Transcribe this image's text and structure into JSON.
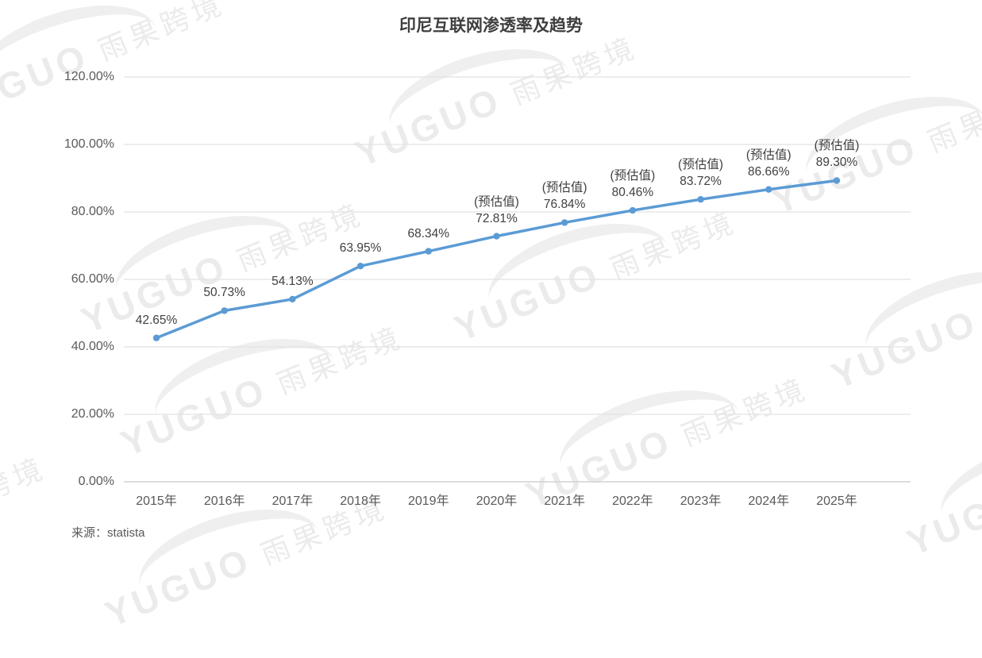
{
  "chart_data": {
    "type": "line",
    "title": "印尼互联网渗透率及趋势",
    "source": "来源：statista",
    "categories": [
      "2015年",
      "2016年",
      "2017年",
      "2018年",
      "2019年",
      "2020年",
      "2021年",
      "2022年",
      "2023年",
      "2024年",
      "2025年"
    ],
    "values": [
      42.65,
      50.73,
      54.13,
      63.95,
      68.34,
      72.81,
      76.84,
      80.46,
      83.72,
      86.66,
      89.3
    ],
    "point_labels": [
      "42.65%",
      "50.73%",
      "54.13%",
      "63.95%",
      "68.34%",
      "72.81%",
      "76.84%",
      "80.46%",
      "83.72%",
      "86.66%",
      "89.30%"
    ],
    "estimated": [
      false,
      false,
      false,
      false,
      false,
      true,
      true,
      true,
      true,
      true,
      true
    ],
    "estimated_note": "(预估值)",
    "y_ticks": [
      {
        "value": 0,
        "label": "0.00%"
      },
      {
        "value": 20,
        "label": "20.00%"
      },
      {
        "value": 40,
        "label": "40.00%"
      },
      {
        "value": 60,
        "label": "60.00%"
      },
      {
        "value": 80,
        "label": "80.00%"
      },
      {
        "value": 100,
        "label": "100.00%"
      },
      {
        "value": 120,
        "label": "120.00%"
      }
    ],
    "ylim": [
      0,
      120
    ],
    "grid": true,
    "legend": "none",
    "colors": {
      "line": "#5B9BD5",
      "marker": "#5B9BD5",
      "grid": "#E2E2E2",
      "axis_line": "#D2D2D2",
      "axis_text": "#595959",
      "label_text": "#404040",
      "title_text": "#3F3F3F",
      "watermark": "#EBEBEB",
      "background": "#FFFFFF"
    }
  },
  "watermark": {
    "latin": "YUGUO",
    "cjk": "雨果跨境"
  }
}
